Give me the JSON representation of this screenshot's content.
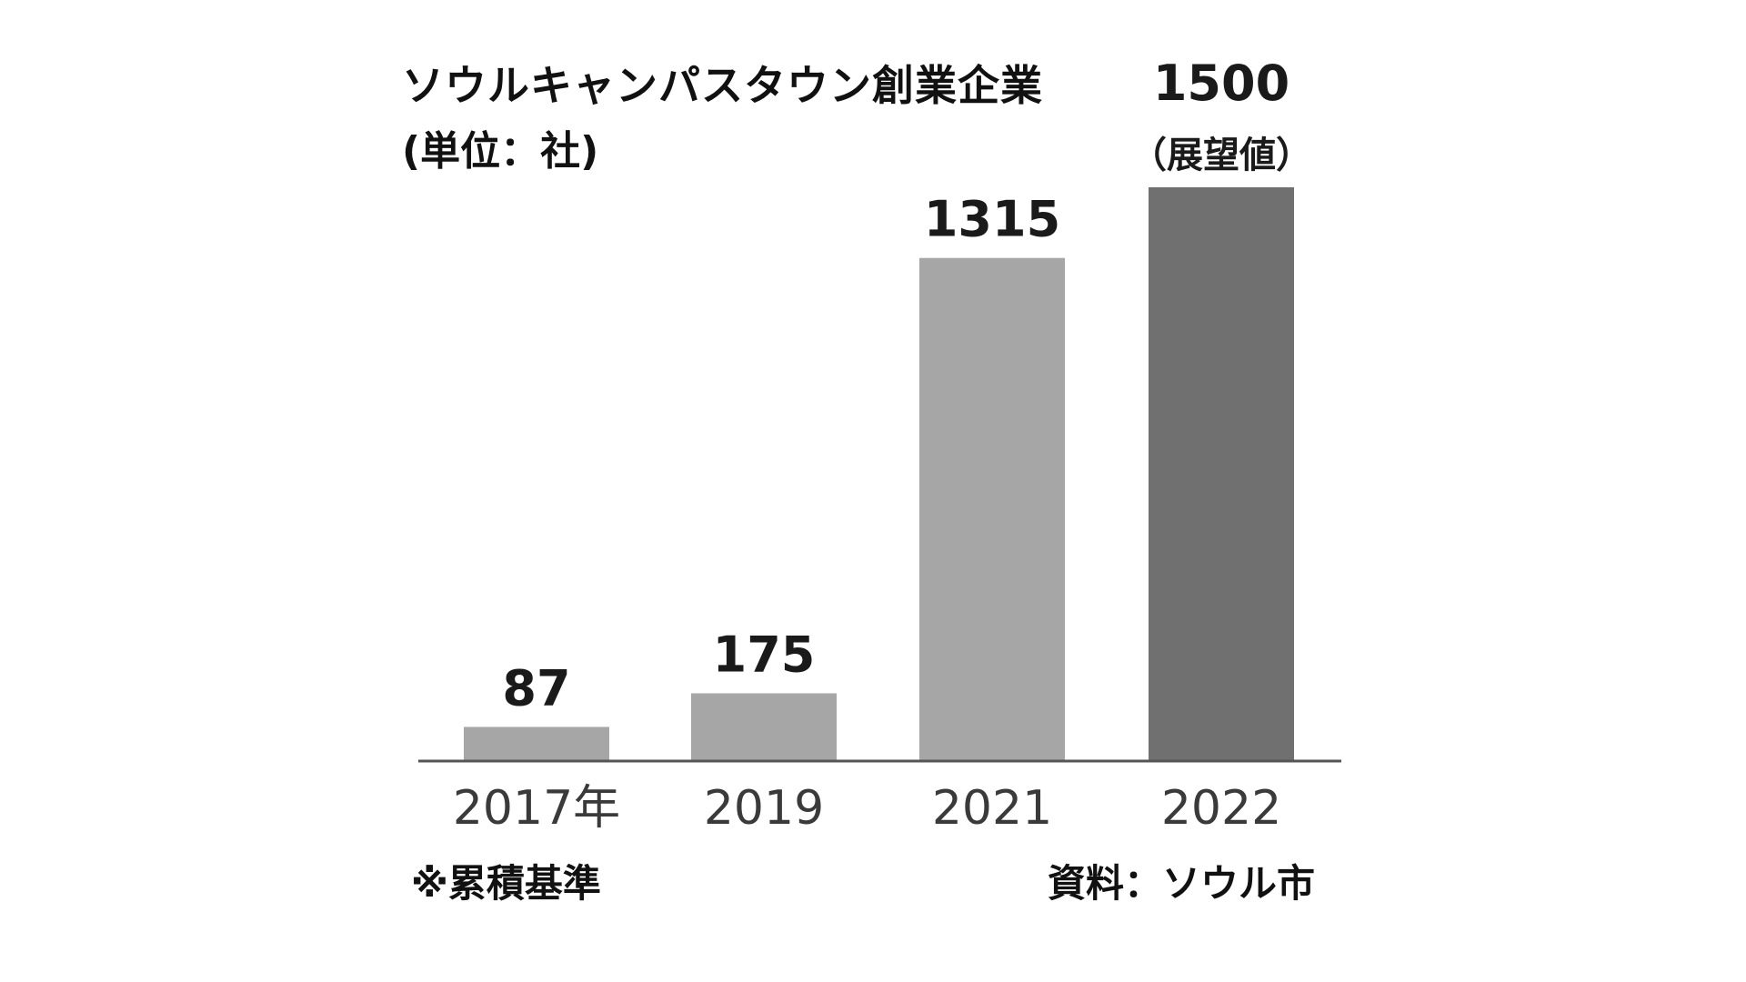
{
  "chart_data": {
    "type": "bar",
    "title": "ソウルキャンパスタウン創業企業",
    "unit_label": "(単位：社)",
    "categories": [
      "2017年",
      "2019",
      "2021",
      "2022"
    ],
    "values": [
      87,
      175,
      1315,
      1500
    ],
    "value_labels": [
      "87",
      "175",
      "1315",
      "1500"
    ],
    "bar_notes": [
      "",
      "",
      "",
      "（展望値）"
    ],
    "bar_colors": [
      "#a6a6a6",
      "#a6a6a6",
      "#a6a6a6",
      "#707070"
    ],
    "axis_color": "#555555",
    "ylim": [
      0,
      1500
    ],
    "footnote": "※累積基準",
    "source": "資料：ソウル市"
  }
}
